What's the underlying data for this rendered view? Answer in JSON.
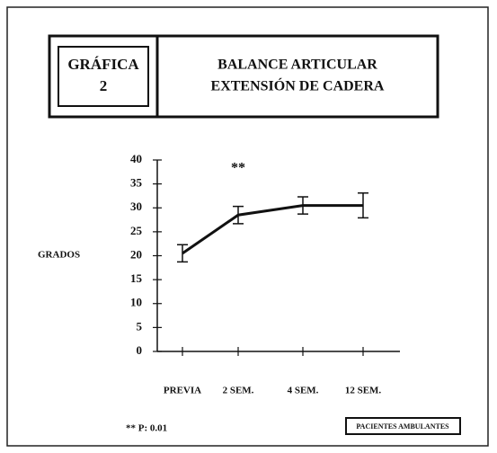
{
  "chart_data": {
    "type": "line",
    "figure_label": [
      "GRÁFICA",
      "2"
    ],
    "title": [
      "BALANCE ARTICULAR",
      "EXTENSIÓN DE CADERA"
    ],
    "ylabel": "GRADOS",
    "categories": [
      "PREVIA",
      "2 SEM.",
      "4 SEM.",
      "12 SEM."
    ],
    "series": [
      {
        "name": "PACIENTES AMBULANTES",
        "color": "#111111",
        "values": [
          20.5,
          28.5,
          30.5,
          30.5
        ],
        "errors": [
          1.8,
          1.8,
          1.8,
          2.6
        ]
      }
    ],
    "ylim": [
      0,
      40
    ],
    "yticks": [
      0,
      5,
      10,
      15,
      20,
      25,
      30,
      35,
      40
    ],
    "annotations": [
      {
        "text": "**",
        "category": 1
      }
    ],
    "footnote": "** P: 0.01",
    "legend": "bottom-right"
  }
}
